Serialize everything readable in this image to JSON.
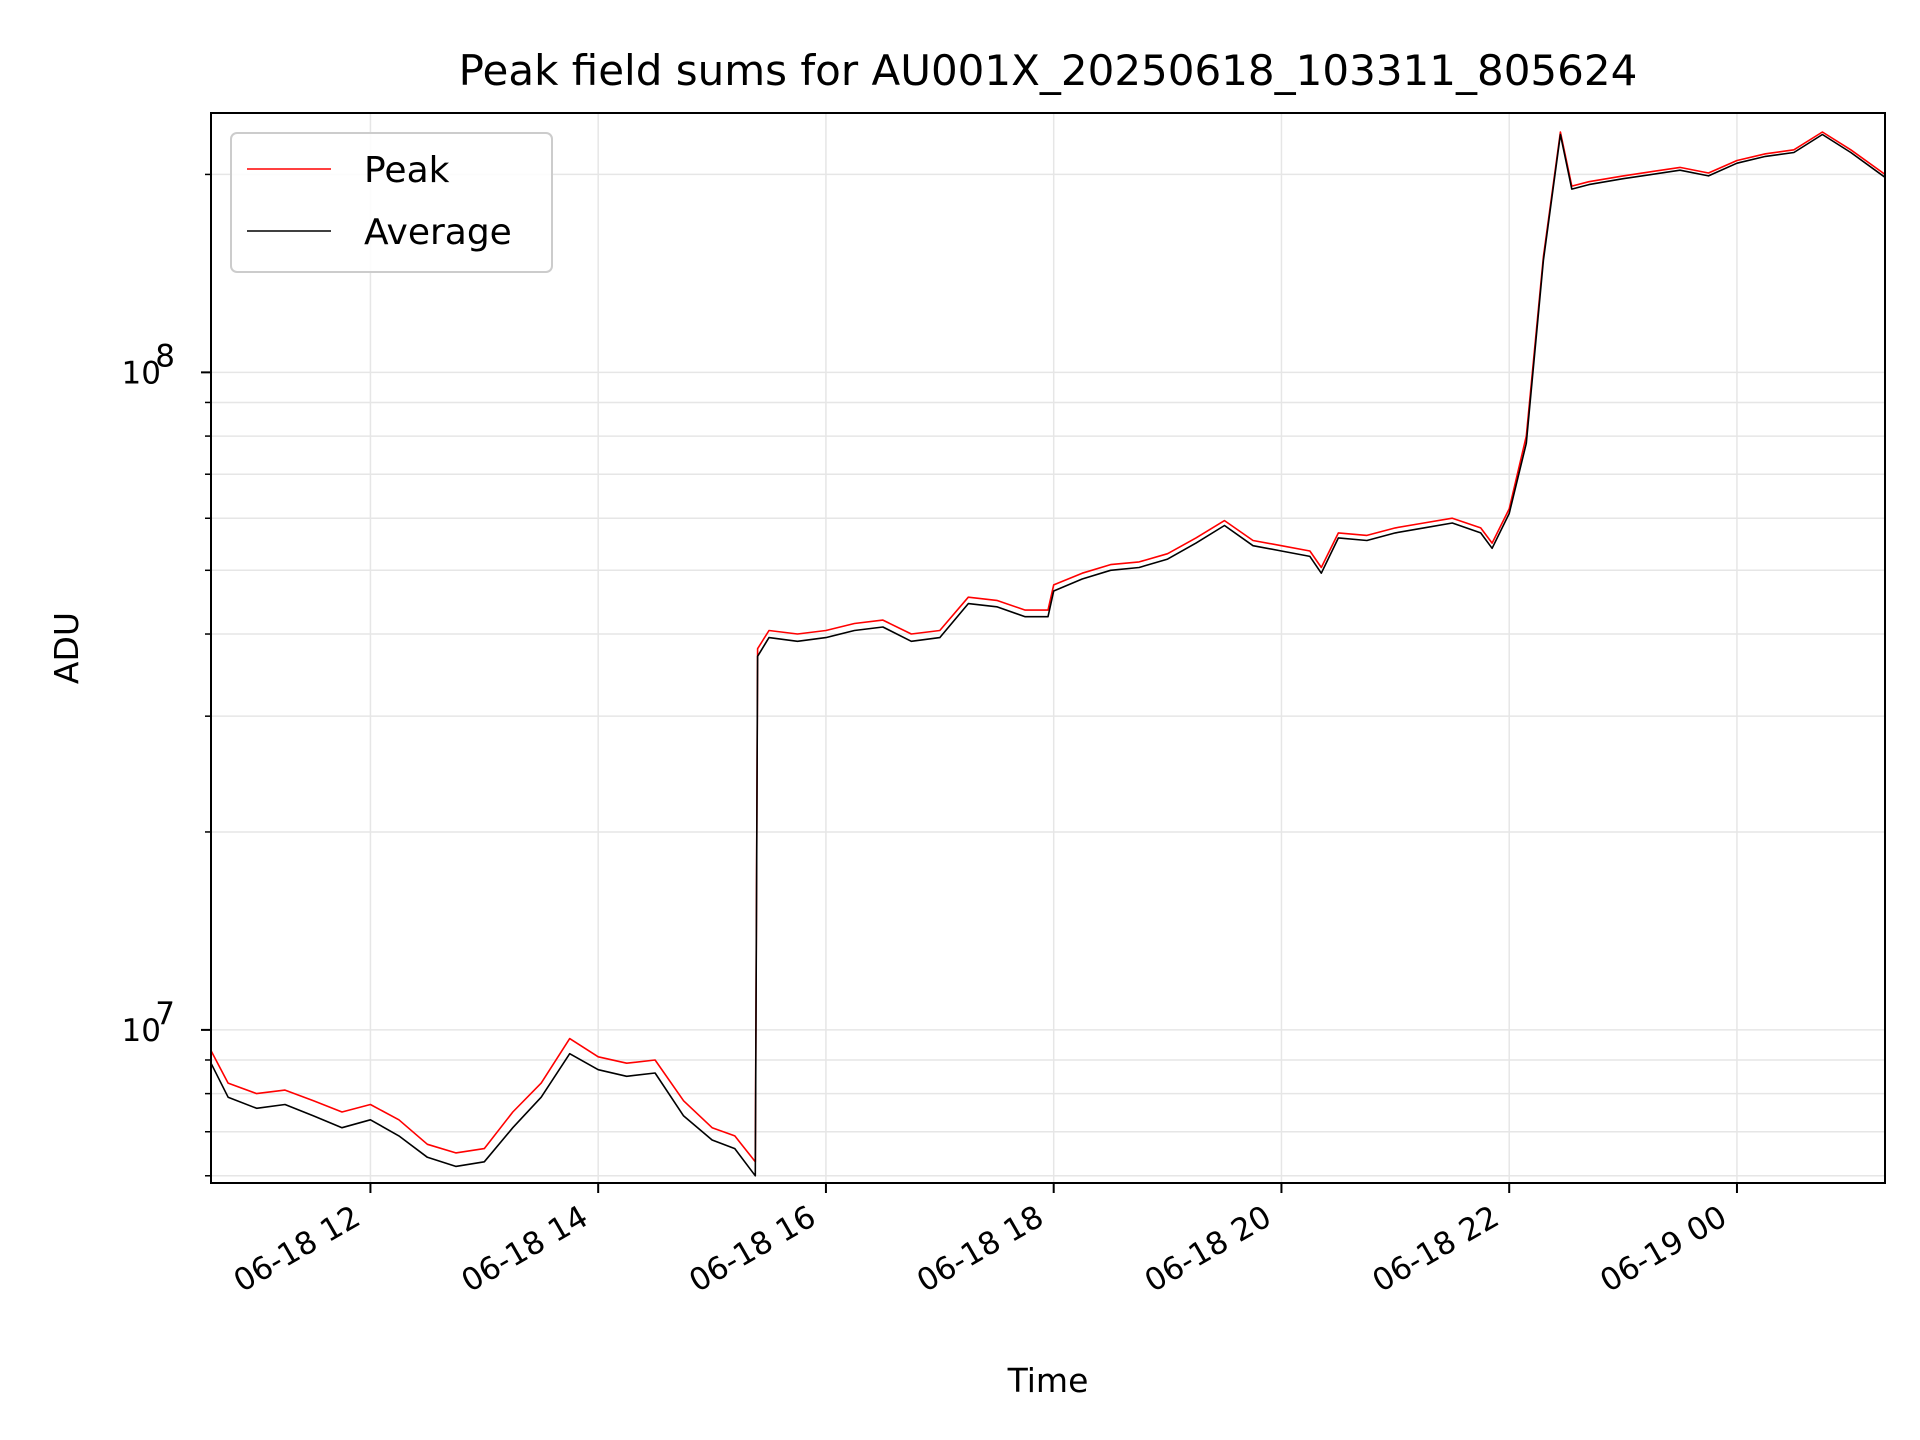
{
  "chart_data": {
    "type": "line",
    "title": "Peak field sums for AU001X_20250618_103311_805624",
    "xlabel": "Time",
    "ylabel": "ADU",
    "y_scale": "log",
    "ylim": [
      5850000,
      248000000
    ],
    "x_range_hours": [
      10.6,
      25.3
    ],
    "x_ticks": [
      {
        "value": 12,
        "label": "06-18 12"
      },
      {
        "value": 14,
        "label": "06-18 14"
      },
      {
        "value": 16,
        "label": "06-18 16"
      },
      {
        "value": 18,
        "label": "06-18 18"
      },
      {
        "value": 20,
        "label": "06-18 20"
      },
      {
        "value": 22,
        "label": "06-18 22"
      },
      {
        "value": 24,
        "label": "06-19 00"
      }
    ],
    "y_ticks": [
      {
        "value": 10000000,
        "base": "10",
        "exp": "7"
      },
      {
        "value": 100000000,
        "base": "10",
        "exp": "8"
      }
    ],
    "grid": true,
    "legend": {
      "position": "top-left"
    },
    "series": [
      {
        "name": "Peak",
        "color": "#ff0000",
        "x": [
          10.6,
          10.75,
          11.0,
          11.25,
          11.5,
          11.75,
          12.0,
          12.25,
          12.5,
          12.75,
          13.0,
          13.25,
          13.5,
          13.75,
          14.0,
          14.25,
          14.5,
          14.75,
          15.0,
          15.2,
          15.38,
          15.4,
          15.5,
          15.75,
          16.0,
          16.25,
          16.5,
          16.75,
          17.0,
          17.25,
          17.5,
          17.75,
          17.95,
          18.0,
          18.25,
          18.5,
          18.75,
          19.0,
          19.25,
          19.5,
          19.75,
          20.0,
          20.25,
          20.35,
          20.5,
          20.75,
          21.0,
          21.25,
          21.5,
          21.75,
          21.85,
          22.0,
          22.15,
          22.3,
          22.45,
          22.55,
          22.7,
          23.0,
          23.5,
          23.75,
          24.0,
          24.25,
          24.5,
          24.75,
          25.0,
          25.3
        ],
        "y": [
          9300000,
          8300000,
          8000000,
          8100000,
          7800000,
          7500000,
          7700000,
          7300000,
          6700000,
          6500000,
          6600000,
          7500000,
          8300000,
          9700000,
          9100000,
          8900000,
          9000000,
          7800000,
          7100000,
          6900000,
          6300000,
          38000000,
          40500000,
          40000000,
          40500000,
          41500000,
          42000000,
          40000000,
          40500000,
          45500000,
          45000000,
          43500000,
          43500000,
          47500000,
          49500000,
          51000000,
          51500000,
          53000000,
          56000000,
          59500000,
          55500000,
          54500000,
          53500000,
          50500000,
          57000000,
          56500000,
          58000000,
          59000000,
          60000000,
          58000000,
          55000000,
          62000000,
          80000000,
          150000000,
          232000000,
          192000000,
          195000000,
          199000000,
          205000000,
          201000000,
          210000000,
          215000000,
          218000000,
          232000000,
          218000000,
          200000000
        ]
      },
      {
        "name": "Average",
        "color": "#000000",
        "x": [
          10.6,
          10.75,
          11.0,
          11.25,
          11.5,
          11.75,
          12.0,
          12.25,
          12.5,
          12.75,
          13.0,
          13.25,
          13.5,
          13.75,
          14.0,
          14.25,
          14.5,
          14.75,
          15.0,
          15.2,
          15.38,
          15.4,
          15.5,
          15.75,
          16.0,
          16.25,
          16.5,
          16.75,
          17.0,
          17.25,
          17.5,
          17.75,
          17.95,
          18.0,
          18.25,
          18.5,
          18.75,
          19.0,
          19.25,
          19.5,
          19.75,
          20.0,
          20.25,
          20.35,
          20.5,
          20.75,
          21.0,
          21.25,
          21.5,
          21.75,
          21.85,
          22.0,
          22.15,
          22.3,
          22.45,
          22.55,
          22.7,
          23.0,
          23.5,
          23.75,
          24.0,
          24.25,
          24.5,
          24.75,
          25.0,
          25.3
        ],
        "y": [
          8900000,
          7900000,
          7600000,
          7700000,
          7400000,
          7100000,
          7300000,
          6900000,
          6400000,
          6200000,
          6300000,
          7100000,
          7900000,
          9200000,
          8700000,
          8500000,
          8600000,
          7400000,
          6800000,
          6600000,
          6000000,
          37000000,
          39500000,
          39000000,
          39500000,
          40500000,
          41000000,
          39000000,
          39500000,
          44500000,
          44000000,
          42500000,
          42500000,
          46500000,
          48500000,
          50000000,
          50500000,
          52000000,
          55000000,
          58500000,
          54500000,
          53500000,
          52500000,
          49500000,
          56000000,
          55500000,
          57000000,
          58000000,
          59000000,
          57000000,
          54000000,
          61000000,
          78000000,
          148000000,
          230000000,
          190000000,
          193000000,
          197000000,
          203000000,
          199000000,
          208000000,
          213000000,
          216000000,
          230000000,
          216000000,
          198000000
        ]
      }
    ]
  }
}
